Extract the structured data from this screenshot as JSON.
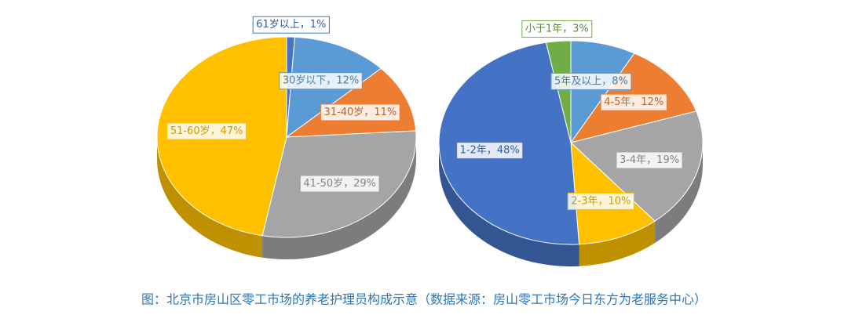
{
  "chart_data": [
    {
      "type": "pie3d",
      "values": [
        1,
        12,
        11,
        29,
        47
      ],
      "value_labels": [
        "61岁以上，1%",
        "30岁以下，12%",
        "31-40岁，11%",
        "41-50岁，29%",
        "51-60岁，47%"
      ],
      "colors": [
        "#4472c4",
        "#5b9bd5",
        "#ed7d31",
        "#a5a5a5",
        "#ffc000"
      ]
    },
    {
      "type": "pie3d",
      "values": [
        8,
        12,
        19,
        10,
        48,
        3
      ],
      "value_labels": [
        "5年及以上，8%",
        "4-5年，12%",
        "3-4年，19%",
        "2-3年，10%",
        "1-2年，48%",
        "小于1年，3%"
      ],
      "colors": [
        "#5b9bd5",
        "#ed7d31",
        "#a5a5a5",
        "#ffc000",
        "#4472c4",
        "#70ad47"
      ]
    }
  ],
  "caption": "图：北京市房山区零工市场的养老护理员构成示意（数据来源：房山零工市场今日东方为老服务中心）"
}
